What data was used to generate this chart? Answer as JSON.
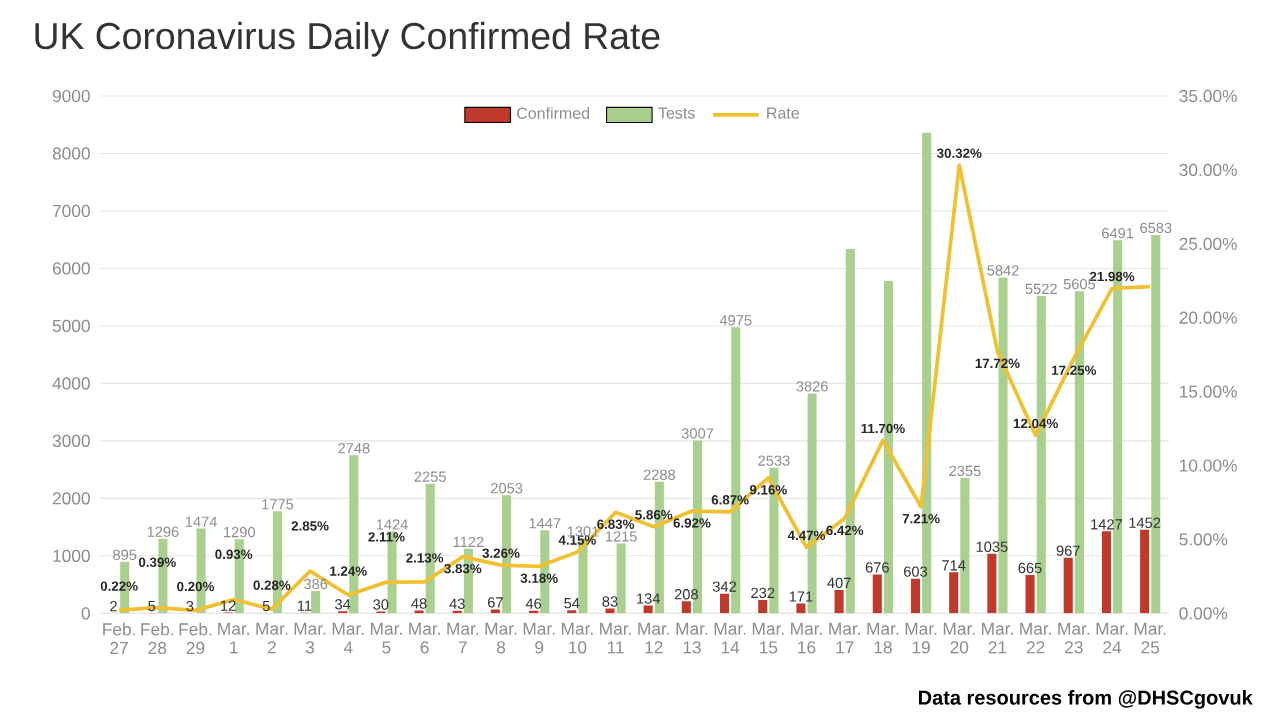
{
  "chart_data": {
    "type": "bar",
    "title": "UK Coronavirus Daily Confirmed Rate",
    "categories": [
      "Feb. 27",
      "Feb. 28",
      "Feb. 29",
      "Mar. 1",
      "Mar. 2",
      "Mar. 3",
      "Mar. 4",
      "Mar. 5",
      "Mar. 6",
      "Mar. 7",
      "Mar. 8",
      "Mar. 9",
      "Mar. 10",
      "Mar. 11",
      "Mar. 12",
      "Mar. 13",
      "Mar. 14",
      "Mar. 15",
      "Mar. 16",
      "Mar. 17",
      "Mar. 18",
      "Mar. 19",
      "Mar. 20",
      "Mar. 21",
      "Mar. 22",
      "Mar. 23",
      "Mar. 24",
      "Mar. 25"
    ],
    "series": [
      {
        "name": "Confirmed",
        "color": "#c0392b",
        "values": [
          2,
          5,
          3,
          12,
          5,
          11,
          34,
          30,
          48,
          43,
          67,
          46,
          54,
          83,
          134,
          208,
          342,
          232,
          171,
          407,
          676,
          603,
          714,
          1035,
          665,
          967,
          1427,
          1452
        ],
        "value_labels": [
          "2",
          "5",
          "3",
          "12",
          "5",
          "11",
          "34",
          "30",
          "48",
          "43",
          "67",
          "46",
          "54",
          "83",
          "134",
          "208",
          "342",
          "232",
          "171",
          "407",
          "676",
          "603",
          "714",
          "1035",
          "665",
          "967",
          "1427",
          "1452"
        ]
      },
      {
        "name": "Tests",
        "color": "#a9d08e",
        "values": [
          895,
          1296,
          1474,
          1290,
          1775,
          386,
          2748,
          1424,
          2255,
          1122,
          2053,
          1447,
          1301,
          1215,
          2288,
          3007,
          4975,
          2533,
          3826,
          6340,
          5780,
          8360,
          2355,
          5842,
          5522,
          5605,
          6491,
          6583
        ],
        "value_labels": [
          "895",
          "1296",
          "1474",
          "1290",
          "1775",
          "386",
          "2748",
          "1424",
          "2255",
          "1122",
          "2053",
          "1447",
          "1301",
          "1215",
          "2288",
          "3007",
          "4975",
          "2533",
          "3826",
          null,
          null,
          null,
          "2355",
          "5842",
          "5522",
          "5605",
          "6491",
          "6583"
        ]
      },
      {
        "name": "Rate",
        "type": "line",
        "axis": "y2",
        "color": "#f0c030",
        "values": [
          0.22,
          0.39,
          0.2,
          0.93,
          0.28,
          2.85,
          1.24,
          2.11,
          2.13,
          3.83,
          3.26,
          3.18,
          4.15,
          6.83,
          5.86,
          6.92,
          6.87,
          9.16,
          4.47,
          6.42,
          11.7,
          7.21,
          30.32,
          17.72,
          12.04,
          17.25,
          21.98,
          22.1
        ],
        "value_labels": [
          "0.22%",
          "0.39%",
          "0.20%",
          "0.93%",
          "0.28%",
          "2.85%",
          "1.24%",
          "2.11%",
          "2.13%",
          "3.83%",
          "3.26%",
          "3.18%",
          "4.15%",
          "6.83%",
          "5.86%",
          "6.92%",
          "6.87%",
          "9.16%",
          "4.47%",
          "6.42%",
          "11.70%",
          "7.21%",
          "30.32%",
          "17.72%",
          "12.04%",
          "17.25%",
          "21.98%",
          null
        ]
      }
    ],
    "ylim": [
      0,
      9000
    ],
    "yticks": [
      0,
      1000,
      2000,
      3000,
      4000,
      5000,
      6000,
      7000,
      8000,
      9000
    ],
    "y2lim": [
      0,
      35
    ],
    "y2ticks": [
      {
        "value": 0,
        "label": "0.00%"
      },
      {
        "value": 5,
        "label": "5.00%"
      },
      {
        "value": 10,
        "label": "10.00%"
      },
      {
        "value": 15,
        "label": "15.00%"
      },
      {
        "value": 20,
        "label": "20.00%"
      },
      {
        "value": 25,
        "label": "25.00%"
      },
      {
        "value": 30,
        "label": "30.00%"
      },
      {
        "value": 35,
        "label": "35.00%"
      }
    ],
    "grid": "y",
    "legend": "top",
    "annotations": [
      "Data resources from @DHSCgovuk"
    ]
  }
}
